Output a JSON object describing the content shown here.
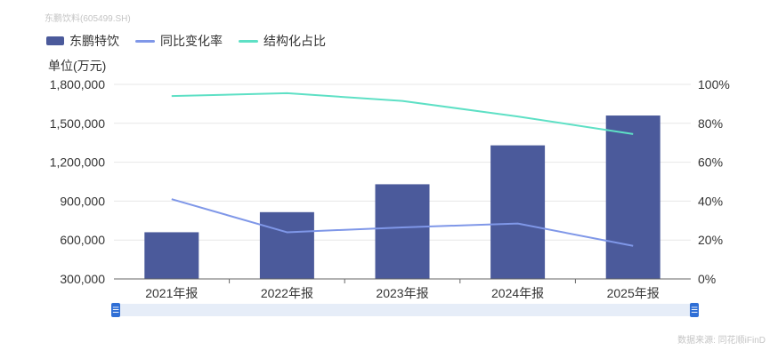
{
  "watermark": "东鹏饮料(605499.SH)",
  "unit": "单位(万元)",
  "source": "数据来源: 同花顺iFinD",
  "colors": {
    "bar": "#4b5a9b",
    "yoy": "#7f97e8",
    "share": "#5ee0c5",
    "grid": "#e7e7e7",
    "axis": "#666666",
    "text": "#333333"
  },
  "legend": [
    {
      "label": "东鹏特饮",
      "type": "bar"
    },
    {
      "label": "同比变化率",
      "type": "line"
    },
    {
      "label": "结构化占比",
      "type": "line"
    }
  ],
  "chart_data": {
    "type": "bar",
    "categories": [
      "2021年报",
      "2022年报",
      "2023年报",
      "2024年报",
      "2025年报"
    ],
    "series": [
      {
        "name": "东鹏特饮",
        "type": "bar",
        "values": [
          660000,
          815000,
          1030000,
          1330000,
          1560000
        ]
      },
      {
        "name": "同比变化率",
        "type": "line",
        "axis": "right",
        "values": [
          41,
          24,
          26.5,
          28.5,
          17
        ]
      },
      {
        "name": "结构化占比",
        "type": "line",
        "axis": "right",
        "values": [
          94,
          95.5,
          91.5,
          83.5,
          74.5
        ]
      }
    ],
    "left_axis": {
      "ylim": [
        300000,
        1800000
      ],
      "ticks": [
        300000,
        600000,
        900000,
        1200000,
        1500000,
        1800000
      ],
      "tick_labels": [
        "300,000",
        "600,000",
        "900,000",
        "1,200,000",
        "1,500,000",
        "1,800,000"
      ]
    },
    "right_axis": {
      "ylim": [
        0,
        100
      ],
      "ticks": [
        0,
        20,
        40,
        60,
        80,
        100
      ],
      "tick_labels": [
        "0%",
        "20%",
        "40%",
        "60%",
        "80%",
        "100%"
      ]
    },
    "grid": true,
    "legend_position": "top-left"
  }
}
